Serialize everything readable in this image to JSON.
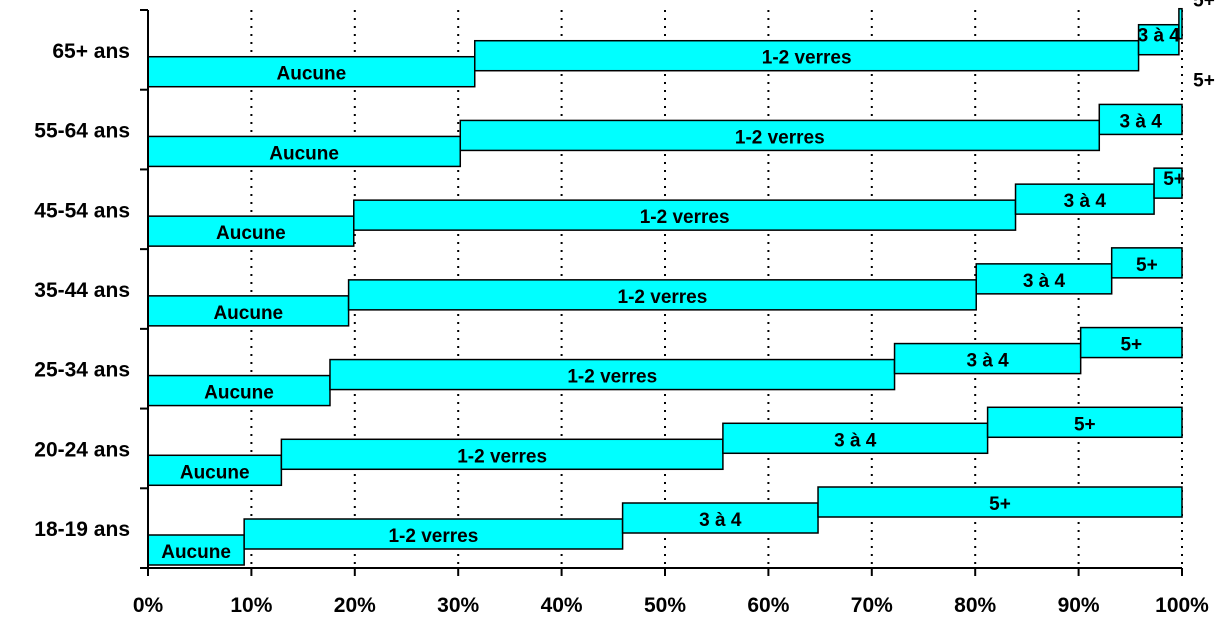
{
  "chart_data": {
    "type": "bar",
    "orientation": "horizontal",
    "stacked": true,
    "percent_scale": true,
    "bar_color": "#00FFFF",
    "bar_stroke": "#000000",
    "grid": "vertical dotted",
    "legend": "none",
    "xlim": [
      0,
      100
    ],
    "x_ticks": [
      "0%",
      "10%",
      "20%",
      "30%",
      "40%",
      "50%",
      "60%",
      "70%",
      "80%",
      "90%",
      "100%"
    ],
    "categories": [
      "65+ ans",
      "55-64 ans",
      "45-54 ans",
      "35-44 ans",
      "25-34 ans",
      "20-24 ans",
      "18-19 ans"
    ],
    "series": [
      {
        "name": "Aucune",
        "values": [
          31.6,
          30.2,
          19.9,
          19.4,
          17.6,
          12.9,
          9.3
        ]
      },
      {
        "name": "1-2 verres",
        "values": [
          64.2,
          61.8,
          64.0,
          60.7,
          54.6,
          42.7,
          36.6
        ]
      },
      {
        "name": "3 à 4",
        "values": [
          3.9,
          8.0,
          13.4,
          13.1,
          18.0,
          25.6,
          18.9
        ]
      },
      {
        "name": "5+",
        "values": [
          0.3,
          0.0,
          2.7,
          6.8,
          9.8,
          18.8,
          35.2
        ]
      }
    ]
  }
}
